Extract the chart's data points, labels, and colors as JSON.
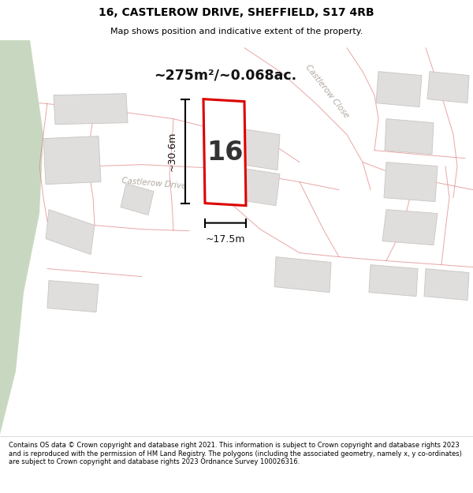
{
  "title_line1": "16, CASTLEROW DRIVE, SHEFFIELD, S17 4RB",
  "title_line2": "Map shows position and indicative extent of the property.",
  "footer_text": "Contains OS data © Crown copyright and database right 2021. This information is subject to Crown copyright and database rights 2023 and is reproduced with the permission of HM Land Registry. The polygons (including the associated geometry, namely x, y co-ordinates) are subject to Crown copyright and database rights 2023 Ordnance Survey 100026316.",
  "area_label": "~275m²/~0.068ac.",
  "plot_number": "16",
  "dim_width": "~17.5m",
  "dim_height": "~30.6m",
  "map_bg": "#f7f6f4",
  "road_color": "#f0b8b8",
  "road_stroke": "#e08080",
  "plot_fill": "#ffffff",
  "plot_stroke": "#dd0000",
  "building_fill": "#e0dedd",
  "building_edge": "#c8c5c2",
  "green_fill": "#c8d8c0",
  "castlerow_close_color": "#b0a8a0",
  "castlerow_drive_color": "#b0a8a0"
}
